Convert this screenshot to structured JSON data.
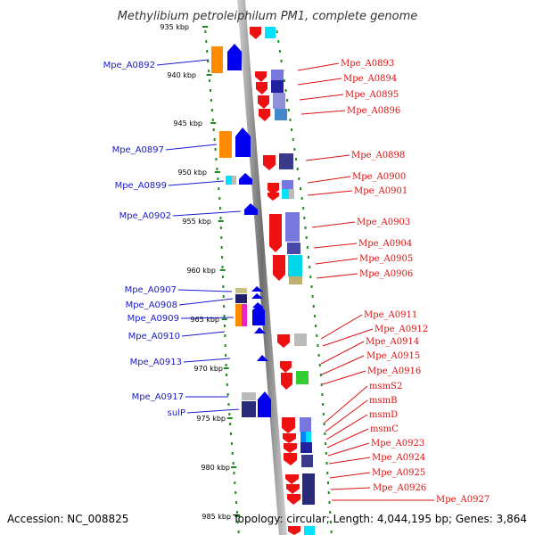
{
  "title": "Methylibium petroleiphilum PM1, complete genome",
  "footer": {
    "accession": "Accession: NC_008825",
    "topology": "Topology: circular; Length: 4,044,195 bp; Genes: 3,864"
  },
  "colors": {
    "left_label": "#1a1acc",
    "right_label": "#dd1111",
    "forward_gene": "#0000ee",
    "reverse_gene": "#ee1111",
    "backbone": "#8c8c8c",
    "dots": "#1f8a1f"
  },
  "scale_labels": [
    "935 kbp",
    "940 kbp",
    "945 kbp",
    "950 kbp",
    "955 kbp",
    "960 kbp",
    "965 kbp",
    "970 kbp",
    "975 kbp",
    "980 kbp",
    "985 kbp"
  ],
  "left_genes": [
    "Mpe_A0892",
    "Mpe_A0897",
    "Mpe_A0899",
    "Mpe_A0902",
    "Mpe_A0907",
    "Mpe_A0908",
    "Mpe_A0909",
    "Mpe_A0910",
    "Mpe_A0913",
    "Mpe_A0917",
    "sulP"
  ],
  "right_genes": [
    "Mpe_A0893",
    "Mpe_A0894",
    "Mpe_A0895",
    "Mpe_A0896",
    "Mpe_A0898",
    "Mpe_A0900",
    "Mpe_A0901",
    "Mpe_A0903",
    "Mpe_A0904",
    "Mpe_A0905",
    "Mpe_A0906",
    "Mpe_A0911",
    "Mpe_A0912",
    "Mpe_A0914",
    "Mpe_A0915",
    "Mpe_A0916",
    "msmS2",
    "msmB",
    "msmD",
    "msmC",
    "Mpe_A0923",
    "Mpe_A0924",
    "Mpe_A0925",
    "Mpe_A0926",
    "Mpe_A0927"
  ]
}
